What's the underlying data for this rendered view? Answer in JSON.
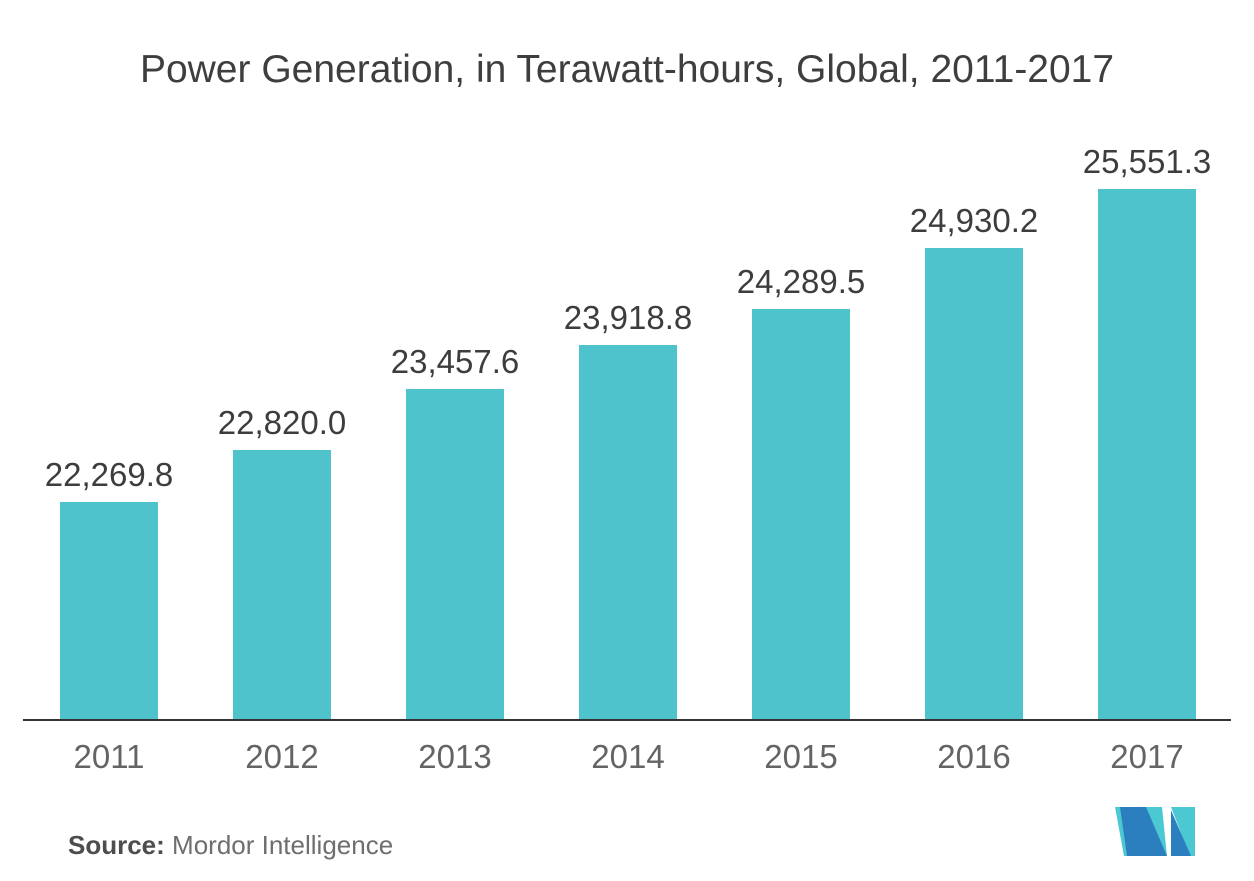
{
  "chart_data": {
    "type": "bar",
    "title": "Power Generation, in Terawatt-hours, Global, 2011-2017",
    "categories": [
      "2011",
      "2012",
      "2013",
      "2014",
      "2015",
      "2016",
      "2017"
    ],
    "values": [
      22269.8,
      22820.0,
      23457.6,
      23918.8,
      24289.5,
      24930.2,
      25551.3
    ],
    "value_labels": [
      "22,269.8",
      "22,820.0",
      "23,457.6",
      "23,918.8",
      "24,289.5",
      "24,930.2",
      "25,551.3"
    ],
    "xlabel": "",
    "ylabel": "",
    "baseline_value": 19984,
    "ylim": [
      19984,
      25551.3
    ],
    "grid": "off",
    "legend": "none",
    "bar_color": "#4ec3cc"
  },
  "footer": {
    "source_label": "Source:",
    "source_value": "Mordor Intelligence",
    "logo_name": "mordor-intelligence-logo"
  },
  "colors": {
    "background": "#ffffff",
    "bar": "#4ec3cc",
    "title_text": "#3e3e3e",
    "value_text": "#3d3d3d",
    "year_text": "#646464",
    "axis_line": "#333333",
    "source_bold_text": "#4d4d4d",
    "source_text": "#6e6e6e",
    "logo_blue": "#2c7fbe",
    "logo_teal": "#4cc8d3"
  }
}
